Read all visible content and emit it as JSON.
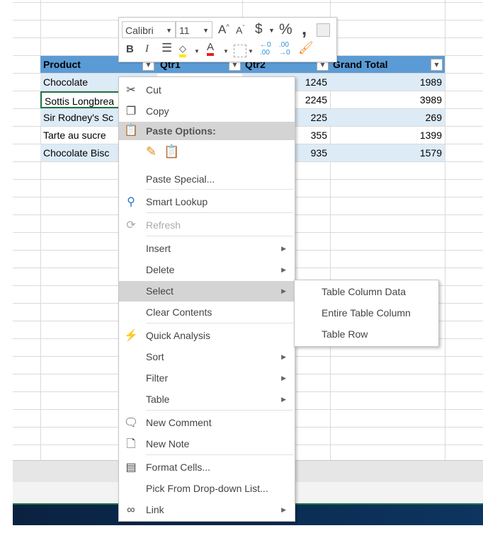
{
  "table": {
    "headers": [
      "Product",
      "Qtr1",
      "Qtr2",
      "Grand Total"
    ],
    "rows": [
      {
        "product": "Chocolate",
        "qtr2": "1245",
        "total": "1989"
      },
      {
        "product": "Sottis Longbrea",
        "qtr2": "2245",
        "total": "3989"
      },
      {
        "product": "Sir Rodney's Sc",
        "qtr2": "225",
        "total": "269"
      },
      {
        "product": "Tarte au sucre",
        "qtr2": "355",
        "total": "1399"
      },
      {
        "product": "Chocolate Bisc",
        "qtr2": "935",
        "total": "1579"
      }
    ]
  },
  "mini_toolbar": {
    "font": "Calibri",
    "size": "11",
    "bold": "B",
    "italic": "I",
    "currency": "$",
    "percent": "%",
    "comma": ","
  },
  "context_menu": {
    "cut": "Cut",
    "copy": "Copy",
    "paste_options": "Paste Options:",
    "paste_special": "Paste Special...",
    "smart_lookup": "Smart Lookup",
    "refresh": "Refresh",
    "insert": "Insert",
    "delete": "Delete",
    "select": "Select",
    "clear_contents": "Clear Contents",
    "quick_analysis": "Quick Analysis",
    "sort": "Sort",
    "filter": "Filter",
    "table": "Table",
    "new_comment": "New Comment",
    "new_note": "New Note",
    "format_cells": "Format Cells...",
    "pick_list": "Pick From Drop-down List...",
    "link": "Link"
  },
  "submenu": {
    "items": [
      "Table Column Data",
      "Entire Table Column",
      "Table Row"
    ]
  },
  "colors": {
    "header": "#5b9bd5",
    "band": "#ddebf7",
    "highlight": "#d4d4d4",
    "taskbar": "#0b2a4a"
  }
}
